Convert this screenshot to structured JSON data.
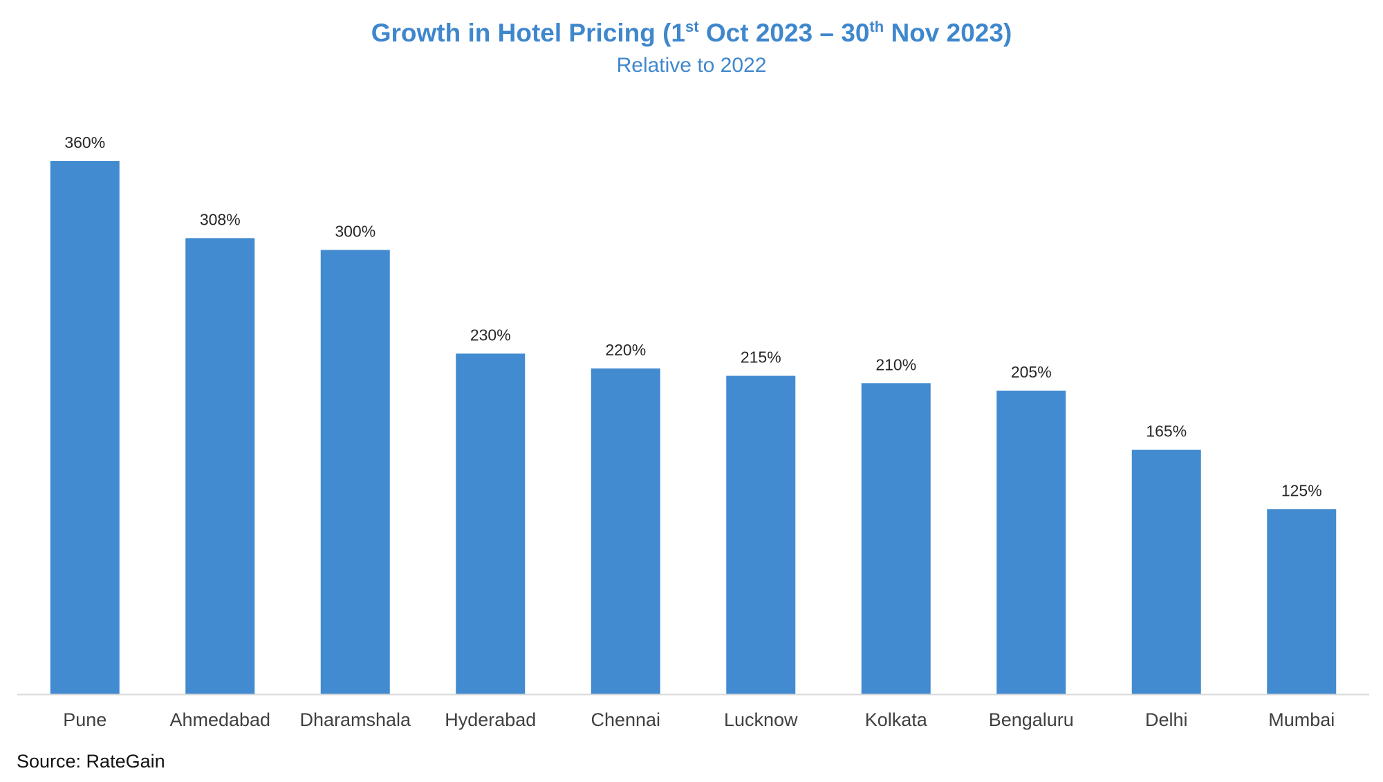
{
  "chart_data": {
    "type": "bar",
    "title": {
      "part1": "Growth in Hotel Pricing (1",
      "sup1": "st",
      "part2": " Oct 2023 – 30",
      "sup2": "th",
      "part3": " Nov 2023)"
    },
    "subtitle": "Relative to 2022",
    "categories": [
      "Pune",
      "Ahmedabad",
      "Dharamshala",
      "Hyderabad",
      "Chennai",
      "Lucknow",
      "Kolkata",
      "Bengaluru",
      "Delhi",
      "Mumbai"
    ],
    "values": [
      360,
      308,
      300,
      230,
      220,
      215,
      210,
      205,
      165,
      125
    ],
    "data_labels": [
      "360%",
      "308%",
      "300%",
      "230%",
      "220%",
      "215%",
      "210%",
      "205%",
      "165%",
      "125%"
    ],
    "ylim": [
      0,
      360
    ],
    "grid": false,
    "legend": "none",
    "bar_color": "#428bd0",
    "axis_color": "#d9d9d9"
  },
  "source": "Source: RateGain"
}
